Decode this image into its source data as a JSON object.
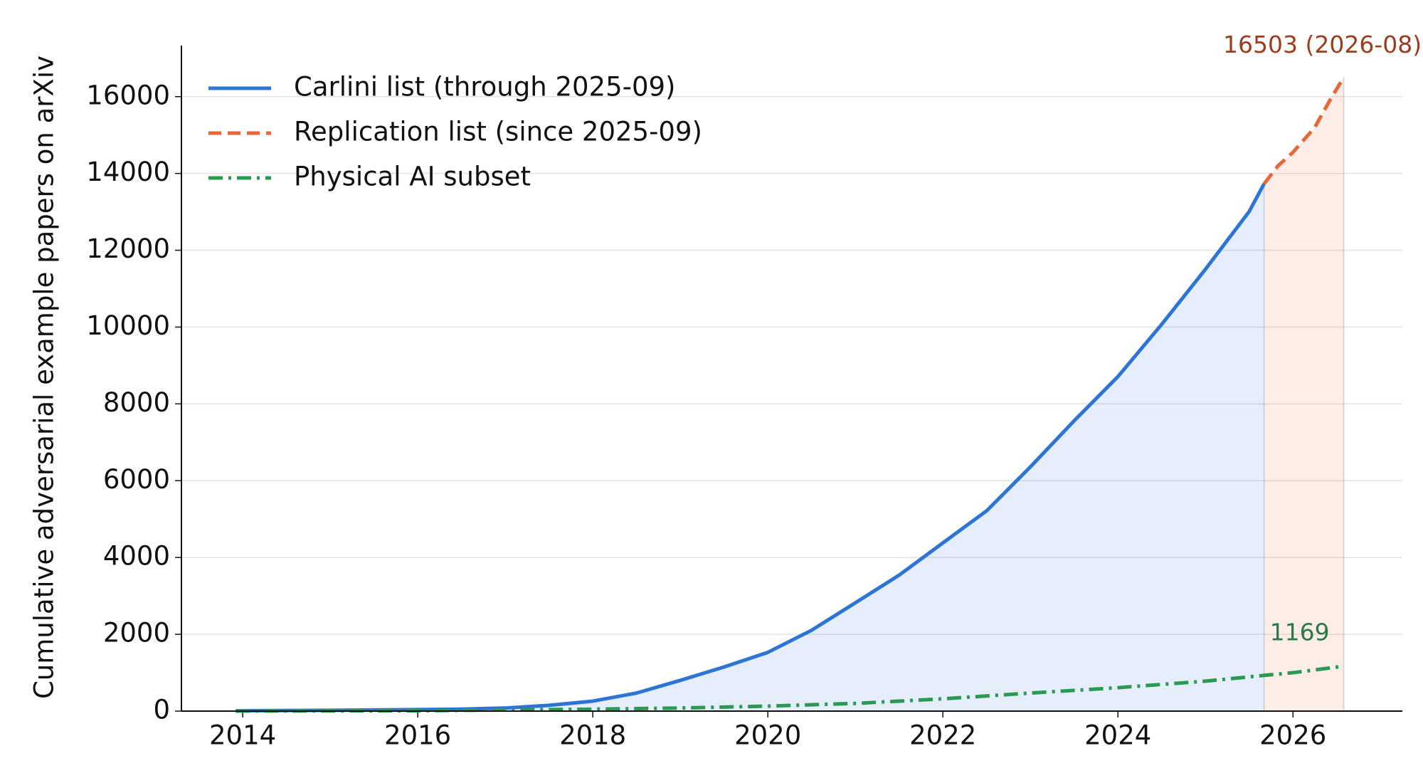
{
  "chart_data": {
    "type": "line",
    "y_label": "Cumulative adversarial example papers on arXiv",
    "xlim": [
      2013.3,
      2027.25
    ],
    "ylim": [
      0,
      17330
    ],
    "xticks": [
      2014,
      2016,
      2018,
      2020,
      2022,
      2024,
      2026
    ],
    "yticks": [
      0,
      2000,
      4000,
      6000,
      8000,
      10000,
      12000,
      14000,
      16000
    ],
    "grid": true,
    "legend": "upper left",
    "series": [
      {
        "name": "Carlini list (through 2025-09)",
        "color": "#2c74d6",
        "dash": "solid",
        "fill": "rgba(44,116,214,0.12)",
        "x": [
          2013.92,
          2015,
          2016,
          2016.5,
          2017,
          2017.5,
          2018,
          2018.5,
          2019,
          2019.5,
          2020,
          2020.5,
          2021,
          2021.5,
          2022,
          2022.5,
          2023,
          2023.5,
          2024,
          2024.5,
          2025,
          2025.5,
          2025.67
        ],
        "values": [
          10,
          20,
          40,
          50,
          80,
          150,
          260,
          470,
          800,
          1150,
          1530,
          2105,
          2820,
          3540,
          4380,
          5215,
          6360,
          7560,
          8710,
          10070,
          11505,
          13010,
          13730
        ]
      },
      {
        "name": "Replication list (since 2025-09)",
        "color": "#e8673a",
        "dash": "dashed",
        "fill": "rgba(232,103,58,0.12)",
        "x": [
          2025.67,
          2025.83,
          2026,
          2026.25,
          2026.42,
          2026.58
        ],
        "values": [
          13730,
          14200,
          14550,
          15200,
          15900,
          16503
        ]
      },
      {
        "name": "Physical AI subset",
        "color": "#2a9a52",
        "dash": "dashdot",
        "x": [
          2013.92,
          2016,
          2018,
          2019,
          2020,
          2021,
          2022,
          2023,
          2024,
          2025,
          2025.67,
          2026,
          2026.58
        ],
        "values": [
          0,
          10,
          50,
          80,
          130,
          200,
          320,
          470,
          610,
          780,
          930,
          1000,
          1169
        ]
      }
    ],
    "annotations": [
      {
        "text": "16503 (2026-08)",
        "color": "#9c3d1e"
      },
      {
        "text": "1169",
        "color": "#2a7a45"
      }
    ]
  }
}
